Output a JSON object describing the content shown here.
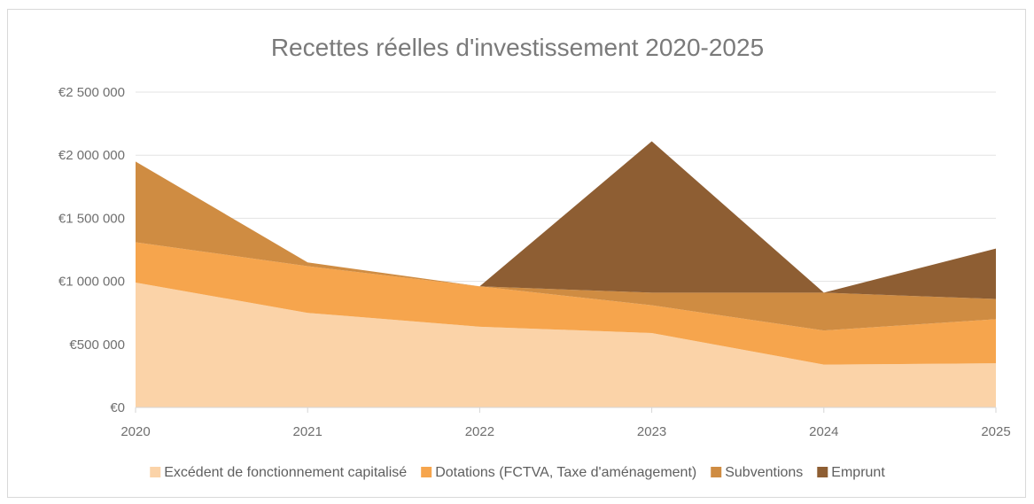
{
  "chart_data": {
    "type": "area",
    "stacked": true,
    "title": "Recettes réelles d'investissement 2020-2025",
    "categories": [
      "2020",
      "2021",
      "2022",
      "2023",
      "2024",
      "2025"
    ],
    "series": [
      {
        "name": "Excédent de fonctionnement capitalisé",
        "color": "#fbd3a8",
        "values": [
          990000,
          750000,
          640000,
          590000,
          340000,
          350000
        ]
      },
      {
        "name": "Dotations (FCTVA, Taxe d'aménagement)",
        "color": "#f6a54d",
        "values": [
          320000,
          370000,
          320000,
          220000,
          270000,
          350000
        ]
      },
      {
        "name": "Subventions",
        "color": "#cf8c42",
        "values": [
          640000,
          30000,
          0,
          100000,
          300000,
          160000
        ]
      },
      {
        "name": "Emprunt",
        "color": "#8e5e33",
        "values": [
          0,
          0,
          0,
          1200000,
          0,
          400000
        ]
      }
    ],
    "ylim": [
      0,
      2500000
    ],
    "yticks": [
      0,
      500000,
      1000000,
      1500000,
      2000000,
      2500000
    ],
    "ytick_labels": [
      "€0",
      "€500 000",
      "€1 000 000",
      "€1 500 000",
      "€2 000 000",
      "€2 500 000"
    ],
    "xlabel": "",
    "ylabel": "",
    "grid": true,
    "legend_position": "bottom"
  }
}
